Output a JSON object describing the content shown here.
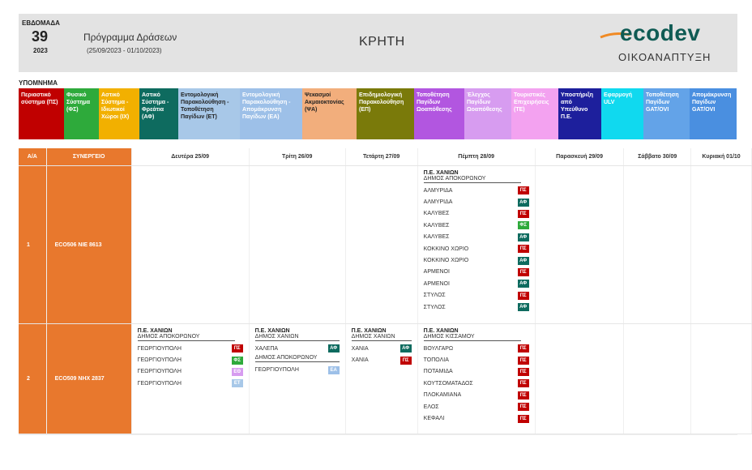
{
  "header": {
    "week_label": "ΕΒΔΟΜΑΔΑ",
    "week_number": "39",
    "year": "2023",
    "program_title": "Πρόγραμμα Δράσεων",
    "program_dates": "(25/09/2023 - 01/10/2023)",
    "region": "ΚΡΗΤΗ",
    "logo_text": "ecodev",
    "logo_subtitle": "ΟΙΚΟΑΝΑΠΤΥΞΗ"
  },
  "legend": {
    "title": "ΥΠΟΜΝΗΜΑ",
    "items": [
      {
        "label": "Περιαστικό σύστημα (ΠΣ)",
        "color": "#c00000"
      },
      {
        "label": "Φυσικό Σύστημα (ΦΣ)",
        "color": "#2eaa3b"
      },
      {
        "label": "Αστικό Σύστημα - Ιδιωτικοί Χώροι (ΙΧ)",
        "color": "#f2b000"
      },
      {
        "label": "Αστικό Σύστημα - Φρεάτια (ΑΦ)",
        "color": "#0e6b5f"
      },
      {
        "label": "Εντομολογική Παρακολούθηση - Τοποθέτηση Παγίδων (ΕΤ)",
        "color": "#a8c8e8"
      },
      {
        "label": "Εντομολογική Παρακολούθηση - Απομάκρυνση Παγίδων (ΕΑ)",
        "color": "#9dc0e8"
      },
      {
        "label": "Ψεκασμοί Ακμαιοκτονίας (ΨΑ)",
        "color": "#f2ae7c"
      },
      {
        "label": "Επιδημιολογική Παρακολούθηση (ΕΠ)",
        "color": "#7a7a0a"
      },
      {
        "label": "Τοποθέτηση Παγίδων Ωοαπόθεσης",
        "color": "#b256e0"
      },
      {
        "label": "Έλεγχος Παγίδων Ωοαπόθεσης",
        "color": "#d79cf0"
      },
      {
        "label": "Τουριστικές Επιχειρήσεις (ΤΕ)",
        "color": "#f3a2f0"
      },
      {
        "label": "Υποστήριξη από Υπεύθυνο Π.Ε.",
        "color": "#1d1f9c"
      },
      {
        "label": "Εφαρμογή ULV",
        "color": "#10d9ef"
      },
      {
        "label": "Τοποθέτηση Παγίδων GAT/OVI",
        "color": "#63a3e8"
      },
      {
        "label": "Απομάκρυνση Παγίδων GAT/OVI",
        "color": "#4a8fe0"
      }
    ]
  },
  "table": {
    "headers": [
      "Α/Α",
      "ΣΥΝΕΡΓΕΙΟ",
      "Δευτέρα 25/09",
      "Τρίτη 26/09",
      "Τετάρτη 27/09",
      "Πέμπτη 28/09",
      "Παρασκευή 29/09",
      "Σάββατο 30/09",
      "Κυριακή 01/10"
    ],
    "badge_colors": {
      "ΠΣ": "#c00000",
      "ΑΦ": "#0e6b5f",
      "ΦΣ": "#2eaa3b",
      "ΕΘ": "#d79cf0",
      "ΕΤ": "#a8c8e8",
      "ΕΑ": "#9dc0e8"
    },
    "rows": [
      {
        "aa": "1",
        "team": "ECO506  NIE 8613",
        "days": {
          "thu": {
            "pe": "Π.Ε. ΧΑΝΙΩΝ",
            "groups": [
              {
                "dimos": "ΔΗΜΟΣ ΑΠΟΚΟΡΩΝΟΥ",
                "items": [
                  {
                    "place": "ΑΛΜΥΡΙΔΑ",
                    "code": "ΠΣ"
                  },
                  {
                    "place": "ΑΛΜΥΡΙΔΑ",
                    "code": "ΑΦ"
                  },
                  {
                    "place": "ΚΑΛΥΒΕΣ",
                    "code": "ΠΣ"
                  },
                  {
                    "place": "ΚΑΛΥΒΕΣ",
                    "code": "ΦΣ"
                  },
                  {
                    "place": "ΚΑΛΥΒΕΣ",
                    "code": "ΑΦ"
                  },
                  {
                    "place": "ΚΟΚΚΙΝΟ ΧΩΡΙΟ",
                    "code": "ΠΣ"
                  },
                  {
                    "place": "ΚΟΚΚΙΝΟ ΧΩΡΙΟ",
                    "code": "ΑΦ"
                  },
                  {
                    "place": "ΑΡΜΕΝΟΙ",
                    "code": "ΠΣ"
                  },
                  {
                    "place": "ΑΡΜΕΝΟΙ",
                    "code": "ΑΦ"
                  },
                  {
                    "place": "ΣΤΥΛΟΣ",
                    "code": "ΠΣ"
                  },
                  {
                    "place": "ΣΤΥΛΟΣ",
                    "code": "ΑΦ"
                  }
                ]
              }
            ]
          }
        }
      },
      {
        "aa": "2",
        "team": "ECO509  NHX 2837",
        "days": {
          "mon": {
            "pe": "Π.Ε. ΧΑΝΙΩΝ",
            "groups": [
              {
                "dimos": "ΔΗΜΟΣ ΑΠΟΚΟΡΩΝΟΥ",
                "items": [
                  {
                    "place": "ΓΕΩΡΓΙΟΥΠΟΛΗ",
                    "code": "ΠΣ"
                  },
                  {
                    "place": "ΓΕΩΡΓΙΟΥΠΟΛΗ",
                    "code": "ΦΣ"
                  },
                  {
                    "place": "ΓΕΩΡΓΙΟΥΠΟΛΗ",
                    "code": "ΕΘ"
                  },
                  {
                    "place": "ΓΕΩΡΓΙΟΥΠΟΛΗ",
                    "code": "ΕΤ"
                  }
                ]
              }
            ]
          },
          "tue": {
            "pe": "Π.Ε. ΧΑΝΙΩΝ",
            "groups": [
              {
                "dimos": "ΔΗΜΟΣ ΧΑΝΙΩΝ",
                "items": [
                  {
                    "place": "ΧΑΛΕΠΑ",
                    "code": "ΑΦ"
                  }
                ]
              },
              {
                "dimos": "ΔΗΜΟΣ ΑΠΟΚΟΡΩΝΟΥ",
                "items": [
                  {
                    "place": "ΓΕΩΡΓΙΟΥΠΟΛΗ",
                    "code": "ΕΑ"
                  }
                ]
              }
            ]
          },
          "wed": {
            "pe": "Π.Ε. ΧΑΝΙΩΝ",
            "groups": [
              {
                "dimos": "ΔΗΜΟΣ ΧΑΝΙΩΝ",
                "items": [
                  {
                    "place": "ΧΑΝΙΑ",
                    "code": "ΑΦ"
                  },
                  {
                    "place": "ΧΑΝΙΑ",
                    "code": "ΠΣ"
                  }
                ]
              }
            ]
          },
          "thu": {
            "pe": "Π.Ε. ΧΑΝΙΩΝ",
            "groups": [
              {
                "dimos": "ΔΗΜΟΣ ΚΙΣΣΑΜΟΥ",
                "items": [
                  {
                    "place": "ΒΟΥΛΓΑΡΩ",
                    "code": "ΠΣ"
                  },
                  {
                    "place": "ΤΟΠΟΛΙΑ",
                    "code": "ΠΣ"
                  },
                  {
                    "place": "ΠΟΤΑΜΙΔΑ",
                    "code": "ΠΣ"
                  },
                  {
                    "place": "ΚΟΥΤΣΟΜΑΤΑΔΟΣ",
                    "code": "ΠΣ"
                  },
                  {
                    "place": "ΠΛΟΚΑΜΙΑΝΑ",
                    "code": "ΠΣ"
                  },
                  {
                    "place": "ΕΛΟΣ",
                    "code": "ΠΣ"
                  },
                  {
                    "place": "ΚΕΦΑΛΙ",
                    "code": "ΠΣ"
                  }
                ]
              }
            ]
          }
        }
      }
    ]
  }
}
